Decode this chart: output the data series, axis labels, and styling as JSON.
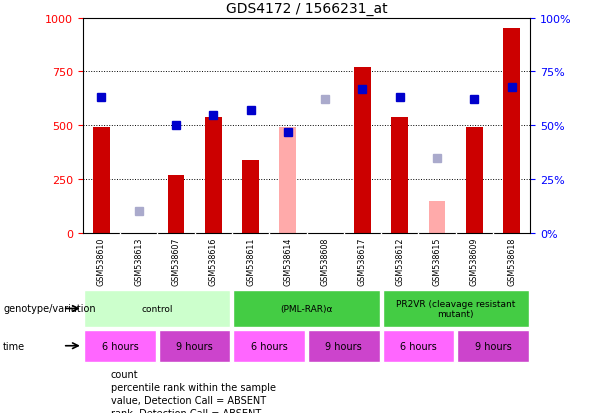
{
  "title": "GDS4172 / 1566231_at",
  "samples": [
    "GSM538610",
    "GSM538613",
    "GSM538607",
    "GSM538616",
    "GSM538611",
    "GSM538614",
    "GSM538608",
    "GSM538617",
    "GSM538612",
    "GSM538615",
    "GSM538609",
    "GSM538618"
  ],
  "bar_values": [
    490,
    0,
    270,
    540,
    340,
    0,
    0,
    770,
    540,
    0,
    490,
    950
  ],
  "bar_absent": [
    0,
    0,
    0,
    0,
    0,
    490,
    0,
    0,
    0,
    150,
    0,
    0
  ],
  "rank_values": [
    63,
    0,
    50,
    55,
    57,
    47,
    0,
    67,
    63,
    0,
    62,
    68
  ],
  "rank_absent": [
    0,
    10,
    0,
    0,
    0,
    0,
    62,
    0,
    0,
    35,
    0,
    0
  ],
  "ylim": [
    0,
    1000
  ],
  "y2lim": [
    0,
    100
  ],
  "yticks": [
    0,
    250,
    500,
    750,
    1000
  ],
  "y2ticks": [
    0,
    25,
    50,
    75,
    100
  ],
  "bar_color": "#cc0000",
  "bar_absent_color": "#ffaaaa",
  "rank_color": "#0000cc",
  "rank_absent_color": "#aaaacc",
  "geno_configs": [
    {
      "start": 0,
      "end": 4,
      "label": "control",
      "color": "#ccffcc"
    },
    {
      "start": 4,
      "end": 8,
      "label": "(PML-RAR)α",
      "color": "#44cc44"
    },
    {
      "start": 8,
      "end": 12,
      "label": "PR2VR (cleavage resistant\nmutant)",
      "color": "#44cc44"
    }
  ],
  "time_configs": [
    {
      "start": 0,
      "end": 2,
      "label": "6 hours",
      "color": "#ff66ff"
    },
    {
      "start": 2,
      "end": 4,
      "label": "9 hours",
      "color": "#cc44cc"
    },
    {
      "start": 4,
      "end": 6,
      "label": "6 hours",
      "color": "#ff66ff"
    },
    {
      "start": 6,
      "end": 8,
      "label": "9 hours",
      "color": "#cc44cc"
    },
    {
      "start": 8,
      "end": 10,
      "label": "6 hours",
      "color": "#ff66ff"
    },
    {
      "start": 10,
      "end": 12,
      "label": "9 hours",
      "color": "#cc44cc"
    }
  ],
  "legend_items": [
    {
      "label": "count",
      "color": "#cc0000"
    },
    {
      "label": "percentile rank within the sample",
      "color": "#0000cc"
    },
    {
      "label": "value, Detection Call = ABSENT",
      "color": "#ffaaaa"
    },
    {
      "label": "rank, Detection Call = ABSENT",
      "color": "#aaaacc"
    }
  ],
  "grid_color": "#888888",
  "sample_bg_color": "#cccccc",
  "sample_div_color": "#ffffff"
}
